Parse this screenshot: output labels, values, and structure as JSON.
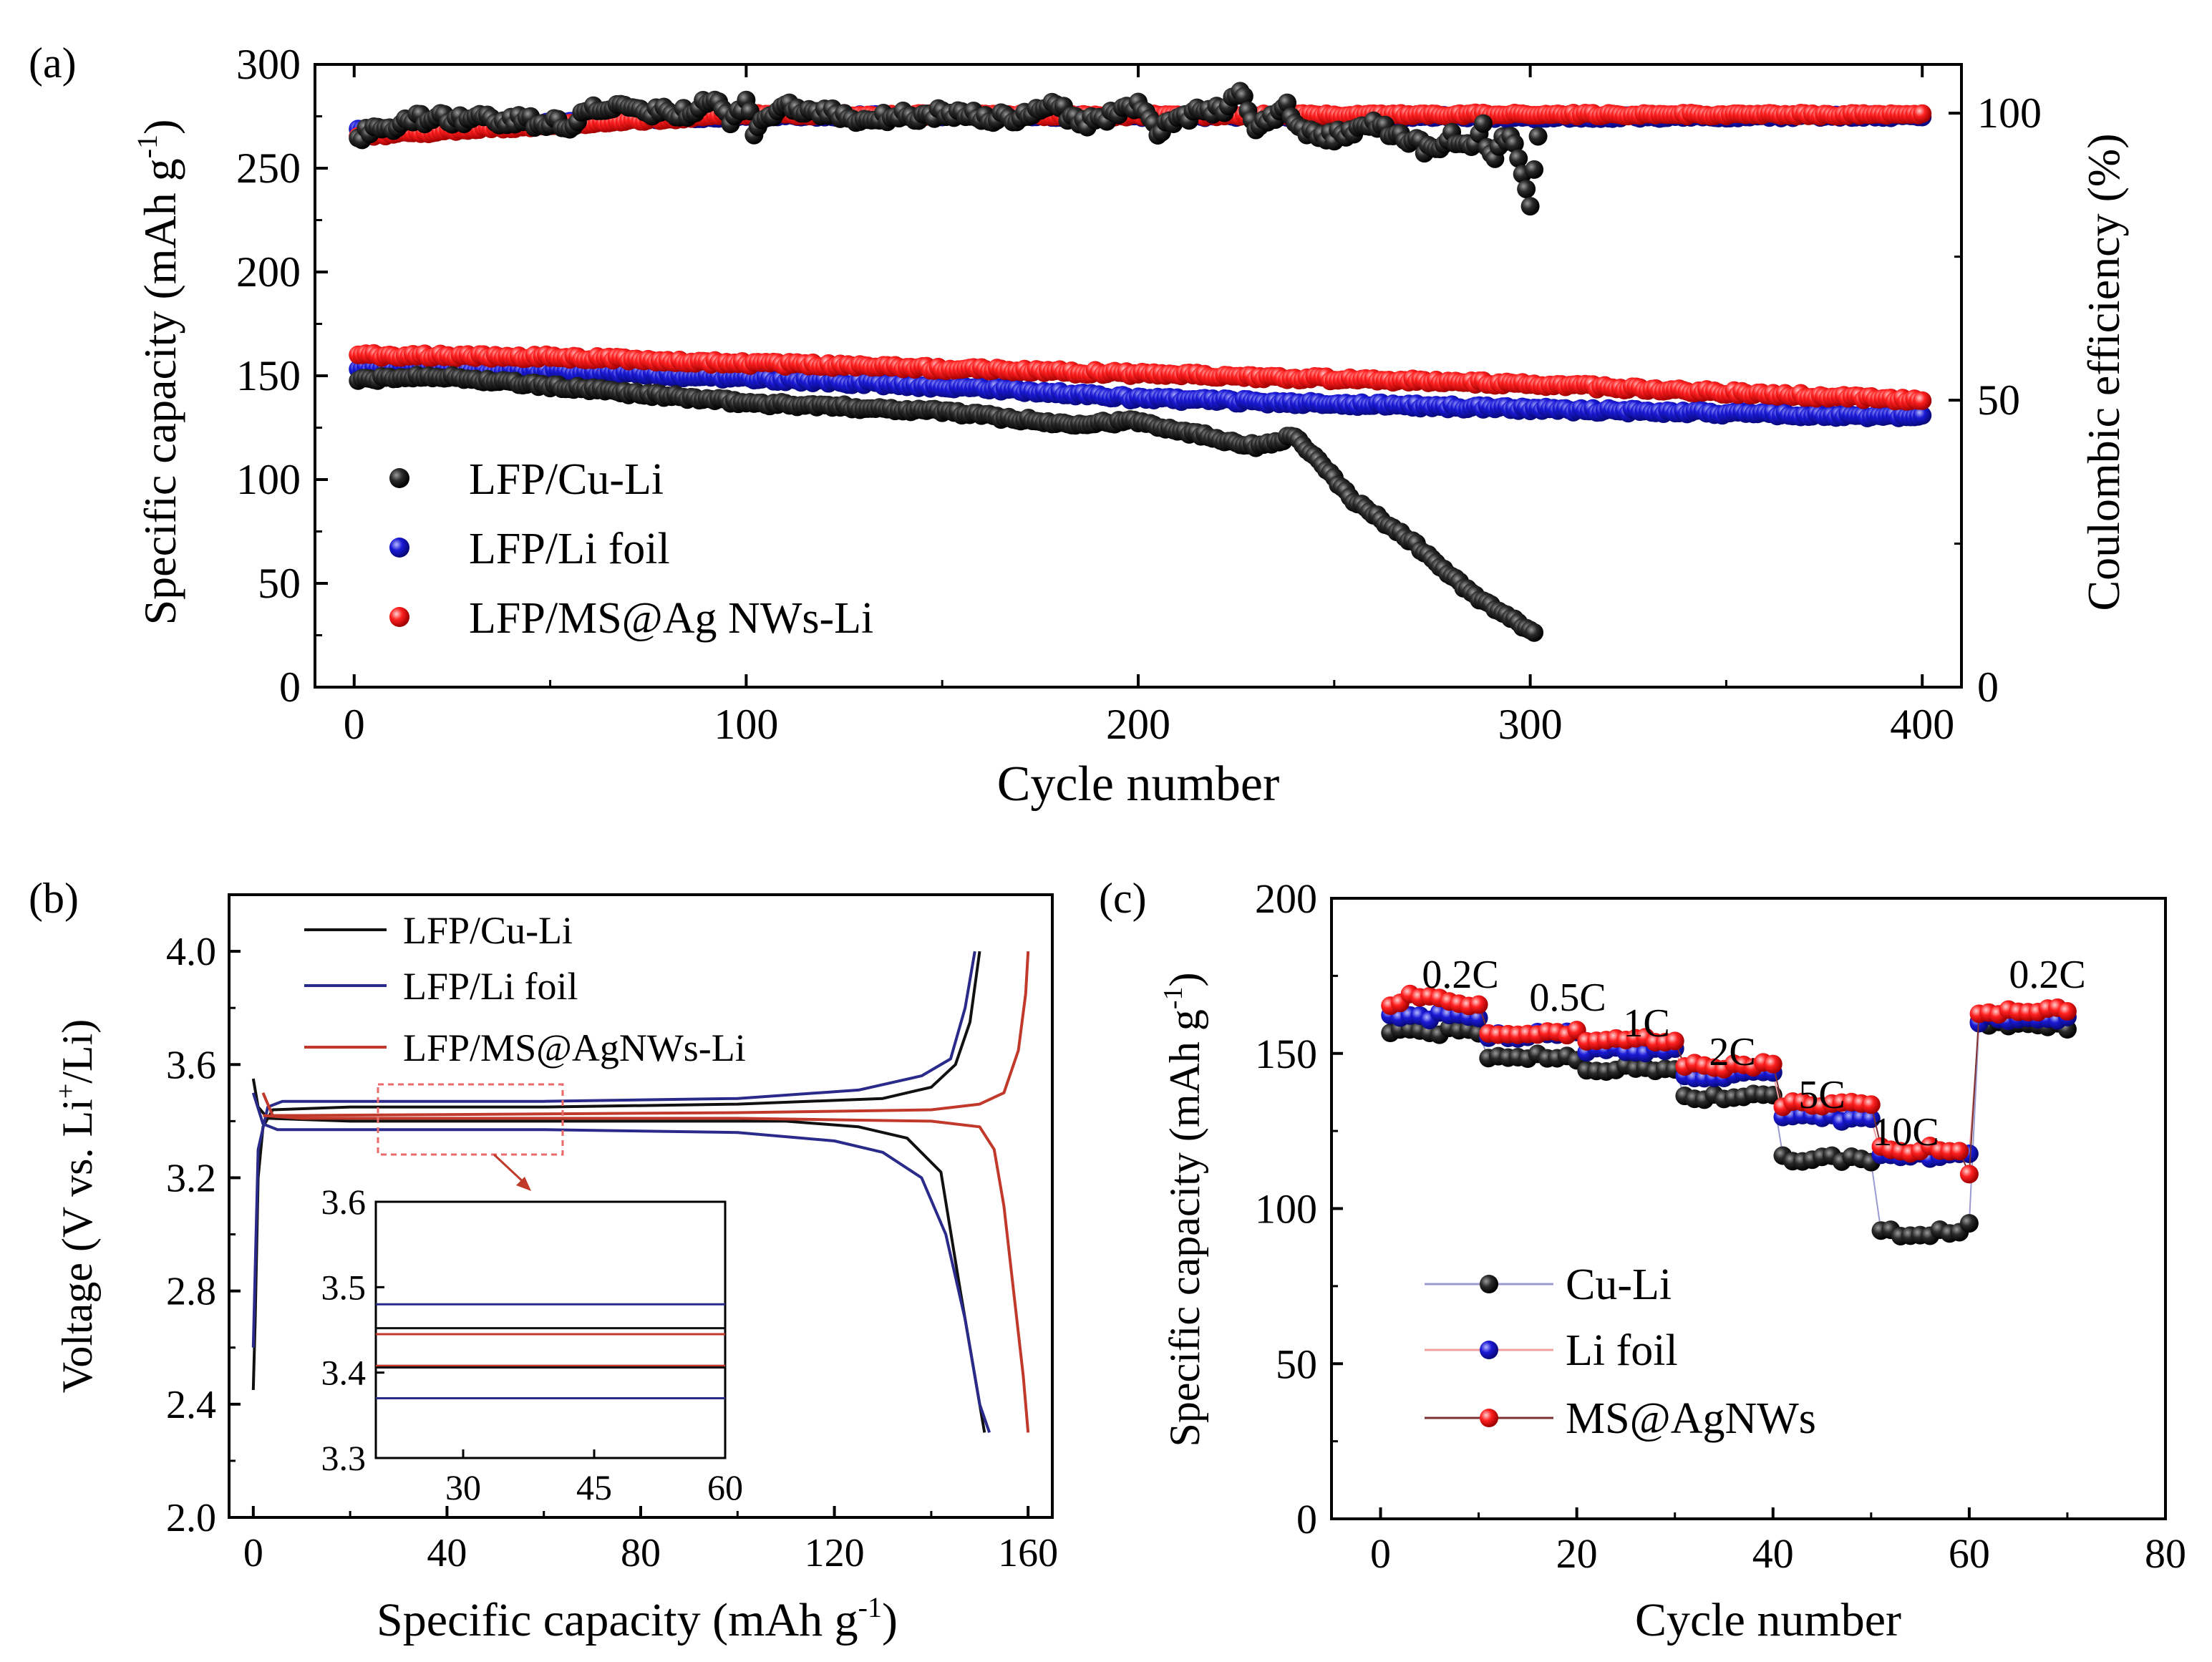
{
  "panels": {
    "a": "(a)",
    "b": "(b)",
    "c": "(c)"
  },
  "chart_data": [
    {
      "type": "scatter",
      "panel": "(a)",
      "xlabel": "Cycle number",
      "ylabel": "Specific capacity (mAh g-1)",
      "ylabel_main": "Specific capacity (mAh g",
      "ylabel_sup": "-1",
      "ylabel_close": ")",
      "y2label": "Coulombic efficiency (%)",
      "xlim": [
        -10,
        410
      ],
      "ylim": [
        0,
        300
      ],
      "y2lim": [
        0,
        108.5
      ],
      "xticks": [
        "0",
        "100",
        "200",
        "300",
        "400"
      ],
      "yticks": [
        "0",
        "50",
        "100",
        "150",
        "200",
        "250",
        "300"
      ],
      "y2ticks": [
        "0",
        "50",
        "100"
      ],
      "colors": {
        "cu": "#000000",
        "li": "#1a1ad6",
        "ms": "#ff2020"
      },
      "legend": [
        "LFP/Cu-Li",
        "LFP/Li foil",
        "LFP/MS@Ag NWs-Li"
      ],
      "series": [
        {
          "name": "LFP/Cu-Li capacity",
          "axis": "left",
          "color": "#000000",
          "points": [
            [
              1,
              148
            ],
            [
              20,
              150
            ],
            [
              50,
              145
            ],
            [
              100,
              137
            ],
            [
              150,
              133
            ],
            [
              180,
              127
            ],
            [
              200,
              128
            ],
            [
              220,
              120
            ],
            [
              230,
              116
            ],
            [
              240,
              121
            ],
            [
              255,
              90
            ],
            [
              270,
              70
            ],
            [
              285,
              45
            ],
            [
              295,
              33
            ],
            [
              301,
              26
            ]
          ]
        },
        {
          "name": "LFP/Li foil capacity",
          "axis": "left",
          "color": "#1a1ad6",
          "points": [
            [
              1,
              154
            ],
            [
              50,
              152
            ],
            [
              100,
              149
            ],
            [
              170,
              143
            ],
            [
              200,
              139
            ],
            [
              300,
              134
            ],
            [
              400,
              130
            ]
          ]
        },
        {
          "name": "LFP/MS@Ag NWs-Li capacity",
          "axis": "left",
          "color": "#ff2020",
          "points": [
            [
              1,
              160
            ],
            [
              50,
              159
            ],
            [
              100,
              156
            ],
            [
              200,
              151
            ],
            [
              300,
              146
            ],
            [
              400,
              138
            ]
          ]
        },
        {
          "name": "LFP/Cu-Li efficiency",
          "axis": "right",
          "color": "#000000",
          "points": [
            [
              1,
              96
            ],
            [
              15,
              99
            ],
            [
              35,
              99
            ],
            [
              55,
              98
            ],
            [
              60,
              101
            ],
            [
              85,
              100
            ],
            [
              92,
              103
            ],
            [
              96,
              99
            ],
            [
              100,
              102
            ],
            [
              102,
              97
            ],
            [
              110,
              101
            ],
            [
              130,
              99
            ],
            [
              150,
              100
            ],
            [
              170,
              99
            ],
            [
              178,
              102
            ],
            [
              185,
              98
            ],
            [
              200,
              101
            ],
            [
              205,
              97
            ],
            [
              215,
              100
            ],
            [
              222,
              101
            ],
            [
              226,
              104
            ],
            [
              230,
              97
            ],
            [
              238,
              101
            ],
            [
              242,
              97
            ],
            [
              250,
              96
            ],
            [
              260,
              98
            ],
            [
              270,
              95
            ],
            [
              276,
              93
            ],
            [
              280,
              96
            ],
            [
              285,
              94
            ],
            [
              288,
              98
            ],
            [
              290,
              92
            ],
            [
              295,
              97
            ],
            [
              300,
              84
            ],
            [
              302,
              96
            ]
          ]
        },
        {
          "name": "LFP/Li foil efficiency",
          "axis": "right",
          "color": "#1a1ad6",
          "points": [
            [
              1,
              97
            ],
            [
              100,
              99.5
            ],
            [
              200,
              99.5
            ],
            [
              300,
              99.3
            ],
            [
              400,
              99.5
            ]
          ]
        },
        {
          "name": "LFP/MS@Ag NWs-Li efficiency",
          "axis": "right",
          "color": "#ff2020",
          "points": [
            [
              1,
              96
            ],
            [
              100,
              99.8
            ],
            [
              200,
              99.6
            ],
            [
              300,
              99.8
            ],
            [
              400,
              99.7
            ]
          ]
        }
      ]
    },
    {
      "type": "line",
      "panel": "(b)",
      "xlabel": "Specific capacity (mAh g-1)",
      "xlabel_main": "Specific capacity (mAh g",
      "xlabel_sup": "-1",
      "xlabel_close": ")",
      "ylabel": "Voltage (V vs. Li+/Li)",
      "ylabel_main": "Voltage (V vs. Li",
      "ylabel_sup": "+",
      "ylabel_close": "/Li)",
      "xlim": [
        -5,
        165
      ],
      "ylim": [
        2.0,
        4.2
      ],
      "xticks": [
        "0",
        "40",
        "80",
        "120",
        "160"
      ],
      "yticks": [
        "2.0",
        "2.4",
        "2.8",
        "3.2",
        "3.6",
        "4.0"
      ],
      "legend": [
        "LFP/Cu-Li",
        "LFP/Li foil",
        "LFP/MS@AgNWs-Li"
      ],
      "series": [
        {
          "name": "LFP/Cu-Li charge",
          "color": "#111111",
          "points": [
            [
              0,
              2.45
            ],
            [
              0.4,
              2.7
            ],
            [
              1,
              3.2
            ],
            [
              2,
              3.38
            ],
            [
              4,
              3.44
            ],
            [
              20,
              3.45
            ],
            [
              60,
              3.45
            ],
            [
              100,
              3.46
            ],
            [
              130,
              3.48
            ],
            [
              140,
              3.52
            ],
            [
              145,
              3.6
            ],
            [
              148,
              3.75
            ],
            [
              150,
              4.0
            ]
          ]
        },
        {
          "name": "LFP/Cu-Li discharge",
          "color": "#111111",
          "points": [
            [
              0,
              3.55
            ],
            [
              1,
              3.45
            ],
            [
              3,
              3.41
            ],
            [
              20,
              3.4
            ],
            [
              80,
              3.4
            ],
            [
              110,
              3.4
            ],
            [
              125,
              3.38
            ],
            [
              135,
              3.34
            ],
            [
              142,
              3.22
            ],
            [
              146,
              2.8
            ],
            [
              149,
              2.5
            ],
            [
              151,
              2.3
            ]
          ]
        },
        {
          "name": "LFP/Li foil charge",
          "color": "#2a2a8a",
          "points": [
            [
              0,
              2.6
            ],
            [
              1,
              3.3
            ],
            [
              3,
              3.45
            ],
            [
              6,
              3.47
            ],
            [
              60,
              3.47
            ],
            [
              100,
              3.48
            ],
            [
              125,
              3.51
            ],
            [
              138,
              3.56
            ],
            [
              144,
              3.62
            ],
            [
              147,
              3.8
            ],
            [
              149,
              4.0
            ]
          ]
        },
        {
          "name": "LFP/Li foil discharge",
          "color": "#2a2a8a",
          "points": [
            [
              0,
              3.5
            ],
            [
              2,
              3.39
            ],
            [
              5,
              3.37
            ],
            [
              60,
              3.37
            ],
            [
              100,
              3.36
            ],
            [
              120,
              3.33
            ],
            [
              130,
              3.29
            ],
            [
              138,
              3.2
            ],
            [
              143,
              3.0
            ],
            [
              147,
              2.7
            ],
            [
              150,
              2.4
            ],
            [
              152,
              2.3
            ]
          ]
        },
        {
          "name": "LFP/MS@AgNWs-Li charge",
          "color": "#c0392b",
          "points": [
            [
              2,
              3.5
            ],
            [
              4,
              3.42
            ],
            [
              10,
              3.42
            ],
            [
              100,
              3.43
            ],
            [
              140,
              3.44
            ],
            [
              150,
              3.46
            ],
            [
              155,
              3.5
            ],
            [
              158,
              3.65
            ],
            [
              159.5,
              3.85
            ],
            [
              160,
              4.0
            ]
          ]
        },
        {
          "name": "LFP/MS@AgNWs-Li discharge",
          "color": "#c0392b",
          "points": [
            [
              2,
              3.42
            ],
            [
              10,
              3.41
            ],
            [
              100,
              3.41
            ],
            [
              140,
              3.4
            ],
            [
              150,
              3.38
            ],
            [
              153,
              3.3
            ],
            [
              155,
              3.1
            ],
            [
              157,
              2.8
            ],
            [
              159,
              2.5
            ],
            [
              160,
              2.3
            ]
          ]
        }
      ],
      "inset": {
        "xlim": [
          20,
          60
        ],
        "ylim": [
          3.3,
          3.6
        ],
        "xticks": [
          "30",
          "45",
          "60"
        ],
        "yticks": [
          "3.3",
          "3.4",
          "3.5",
          "3.6"
        ],
        "series": [
          {
            "name": "Li foil charge",
            "color": "#2a2a8a",
            "value": 3.48
          },
          {
            "name": "Cu-Li charge",
            "color": "#111111",
            "value": 3.452
          },
          {
            "name": "MS@AgNWs-Li charge",
            "color": "#c0392b",
            "value": 3.445
          },
          {
            "name": "MS@AgNWs-Li discharge",
            "color": "#c0392b",
            "value": 3.408
          },
          {
            "name": "Cu-Li discharge",
            "color": "#111111",
            "value": 3.406
          },
          {
            "name": "Li foil discharge",
            "color": "#2a2a8a",
            "value": 3.37
          }
        ]
      }
    },
    {
      "type": "scatter",
      "panel": "(c)",
      "xlabel": "Cycle number",
      "ylabel": "Specific capacity (mAh g-1)",
      "ylabel_main": "Specific capacity (mAh g",
      "ylabel_sup": "-1",
      "ylabel_close": ")",
      "xlim": [
        -5,
        80
      ],
      "ylim": [
        0,
        200
      ],
      "xticks": [
        "0",
        "20",
        "40",
        "60",
        "80"
      ],
      "yticks": [
        "0",
        "50",
        "100",
        "150",
        "200"
      ],
      "legend": [
        "Cu-Li",
        "Li foil",
        "MS@AgNWs"
      ],
      "rate_labels": [
        "0.2C",
        "0.5C",
        "1C",
        "2C",
        "5C",
        "10C",
        "0.2C"
      ],
      "segments": [
        {
          "rate": "0.2C",
          "cu": 157,
          "li": 162,
          "ms": 166
        },
        {
          "rate": "0.5C",
          "cu": 149,
          "li": 156,
          "ms": 157
        },
        {
          "rate": "1C",
          "cu": 145,
          "li": 151,
          "ms": 154
        },
        {
          "rate": "2C",
          "cu": 136,
          "li": 143,
          "ms": 146
        },
        {
          "rate": "5C",
          "cu": 116,
          "li": 129,
          "ms": 134
        },
        {
          "rate": "10C",
          "cu": 92,
          "li": 117,
          "ms": 119
        },
        {
          "rate": "0.2C",
          "cu": 159,
          "li": 161,
          "ms": 163
        }
      ]
    }
  ]
}
